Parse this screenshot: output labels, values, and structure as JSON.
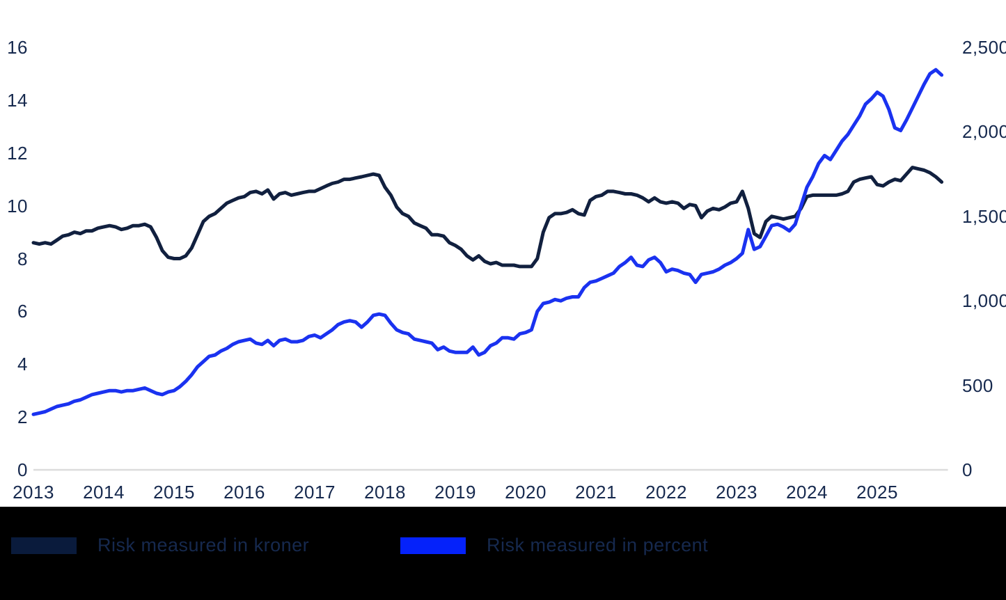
{
  "chart_data": {
    "type": "line",
    "title": "",
    "xlabel": "",
    "ylabel_left": "",
    "ylabel_right": "",
    "x": {
      "start_month": "2013-01",
      "interval": "monthly",
      "count": 156
    },
    "x_tick_labels": [
      "2013",
      "2014",
      "2015",
      "2016",
      "2017",
      "2018",
      "2019",
      "2020",
      "2021",
      "2022",
      "2023",
      "2024",
      "2025"
    ],
    "left_axis": {
      "min": 0,
      "max": 16,
      "tick_step": 2,
      "tick_labels": [
        "0",
        "2",
        "4",
        "6",
        "8",
        "10",
        "12",
        "14",
        "16"
      ]
    },
    "right_axis": {
      "min": 0,
      "max": 2500,
      "tick_step": 500,
      "tick_labels": [
        "0",
        "500",
        "1,000",
        "1,500",
        "2,000",
        "2,500"
      ]
    },
    "grid": "none, only zero baseline shown",
    "legend_position": "bottom-black-bar",
    "series": [
      {
        "name": "Risk measured in kroner",
        "axis": "right",
        "unit": "kroner (billions)",
        "color": "#11203F",
        "values": [
          1344,
          1336,
          1344,
          1336,
          1359,
          1383,
          1391,
          1406,
          1398,
          1414,
          1414,
          1430,
          1438,
          1445,
          1438,
          1422,
          1430,
          1445,
          1445,
          1453,
          1438,
          1375,
          1297,
          1258,
          1250,
          1250,
          1266,
          1313,
          1391,
          1469,
          1500,
          1516,
          1547,
          1578,
          1594,
          1609,
          1617,
          1641,
          1648,
          1633,
          1656,
          1602,
          1633,
          1641,
          1625,
          1633,
          1641,
          1648,
          1648,
          1664,
          1680,
          1695,
          1703,
          1719,
          1719,
          1727,
          1734,
          1742,
          1750,
          1742,
          1672,
          1625,
          1555,
          1516,
          1500,
          1461,
          1445,
          1430,
          1391,
          1391,
          1383,
          1344,
          1328,
          1305,
          1266,
          1242,
          1266,
          1234,
          1219,
          1227,
          1211,
          1211,
          1211,
          1203,
          1203,
          1203,
          1250,
          1406,
          1492,
          1516,
          1516,
          1523,
          1539,
          1516,
          1508,
          1594,
          1617,
          1625,
          1648,
          1648,
          1641,
          1633,
          1633,
          1625,
          1609,
          1586,
          1609,
          1586,
          1578,
          1586,
          1578,
          1547,
          1570,
          1563,
          1492,
          1531,
          1547,
          1539,
          1555,
          1578,
          1586,
          1648,
          1547,
          1398,
          1375,
          1469,
          1500,
          1492,
          1484,
          1492,
          1500,
          1547,
          1617,
          1625,
          1625,
          1625,
          1625,
          1625,
          1633,
          1648,
          1703,
          1719,
          1727,
          1734,
          1688,
          1680,
          1703,
          1719,
          1711,
          1750,
          1789,
          1781,
          1773,
          1758,
          1734,
          1703
        ]
      },
      {
        "name": "Risk measured in percent",
        "axis": "left",
        "unit": "percent",
        "color": "#1A32F0",
        "values": [
          2.1,
          2.15,
          2.2,
          2.3,
          2.4,
          2.45,
          2.5,
          2.6,
          2.65,
          2.75,
          2.85,
          2.9,
          2.95,
          3.0,
          3.0,
          2.95,
          3.0,
          3.0,
          3.05,
          3.1,
          3.0,
          2.9,
          2.85,
          2.95,
          3.0,
          3.15,
          3.35,
          3.6,
          3.9,
          4.1,
          4.3,
          4.35,
          4.5,
          4.6,
          4.75,
          4.85,
          4.9,
          4.95,
          4.8,
          4.75,
          4.9,
          4.7,
          4.9,
          4.95,
          4.85,
          4.85,
          4.9,
          5.05,
          5.1,
          5.0,
          5.15,
          5.3,
          5.5,
          5.6,
          5.65,
          5.6,
          5.4,
          5.6,
          5.85,
          5.9,
          5.85,
          5.55,
          5.3,
          5.2,
          5.15,
          4.95,
          4.9,
          4.85,
          4.8,
          4.55,
          4.65,
          4.5,
          4.45,
          4.45,
          4.45,
          4.65,
          4.35,
          4.45,
          4.7,
          4.8,
          5.0,
          5.0,
          4.95,
          5.15,
          5.2,
          5.3,
          6.0,
          6.3,
          6.35,
          6.45,
          6.4,
          6.5,
          6.55,
          6.55,
          6.9,
          7.1,
          7.15,
          7.25,
          7.35,
          7.45,
          7.7,
          7.85,
          8.05,
          7.75,
          7.7,
          7.95,
          8.05,
          7.85,
          7.5,
          7.6,
          7.55,
          7.45,
          7.4,
          7.1,
          7.4,
          7.45,
          7.5,
          7.6,
          7.75,
          7.85,
          8.0,
          8.2,
          9.1,
          8.35,
          8.45,
          8.85,
          9.25,
          9.3,
          9.2,
          9.05,
          9.3,
          10.0,
          10.7,
          11.1,
          11.6,
          11.9,
          11.75,
          12.1,
          12.45,
          12.7,
          13.05,
          13.4,
          13.85,
          14.05,
          14.3,
          14.15,
          13.65,
          12.95,
          12.85,
          13.25,
          13.7,
          14.15,
          14.6,
          15.0,
          15.15,
          14.95
        ]
      }
    ]
  },
  "legend": {
    "background": "#000000",
    "text_color": "#16294E",
    "items": [
      {
        "label": "Risk measured in kroner",
        "swatch_color": "#0A1B3C"
      },
      {
        "label": "Risk measured in percent",
        "swatch_color": "#0522FA"
      }
    ]
  },
  "colors": {
    "background": "#FFFFFF",
    "axis_text": "#16294E",
    "baseline": "#DCDCDC"
  }
}
